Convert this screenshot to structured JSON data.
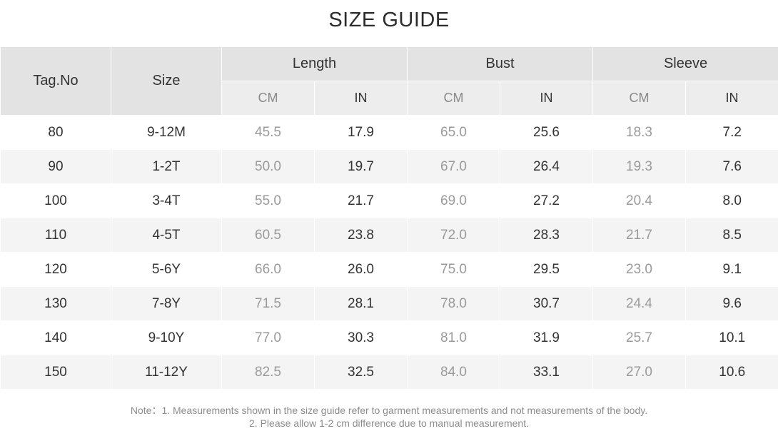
{
  "title": "SIZE GUIDE",
  "headers": {
    "tag": "Tag.No",
    "size": "Size",
    "groups": [
      "Length",
      "Bust",
      "Sleeve"
    ],
    "units": [
      "CM",
      "IN",
      "CM",
      "IN",
      "CM",
      "IN"
    ]
  },
  "rows": [
    {
      "tag": "80",
      "size": "9-12M",
      "values": [
        "45.5",
        "17.9",
        "65.0",
        "25.6",
        "18.3",
        "7.2"
      ]
    },
    {
      "tag": "90",
      "size": "1-2T",
      "values": [
        "50.0",
        "19.7",
        "67.0",
        "26.4",
        "19.3",
        "7.6"
      ]
    },
    {
      "tag": "100",
      "size": "3-4T",
      "values": [
        "55.0",
        "21.7",
        "69.0",
        "27.2",
        "20.4",
        "8.0"
      ]
    },
    {
      "tag": "110",
      "size": "4-5T",
      "values": [
        "60.5",
        "23.8",
        "72.0",
        "28.3",
        "21.7",
        "8.5"
      ]
    },
    {
      "tag": "120",
      "size": "5-6Y",
      "values": [
        "66.0",
        "26.0",
        "75.0",
        "29.5",
        "23.0",
        "9.1"
      ]
    },
    {
      "tag": "130",
      "size": "7-8Y",
      "values": [
        "71.5",
        "28.1",
        "78.0",
        "30.7",
        "24.4",
        "9.6"
      ]
    },
    {
      "tag": "140",
      "size": "9-10Y",
      "values": [
        "77.0",
        "30.3",
        "81.0",
        "31.9",
        "25.7",
        "10.1"
      ]
    },
    {
      "tag": "150",
      "size": "11-12Y",
      "values": [
        "82.5",
        "32.5",
        "84.0",
        "33.1",
        "27.0",
        "10.6"
      ]
    }
  ],
  "note": {
    "line1": "Note：1. Measurements shown in the size guide refer to garment measurements and not measurements of the body.",
    "line2": "2. Please allow 1-2 cm difference due to manual measurement."
  }
}
